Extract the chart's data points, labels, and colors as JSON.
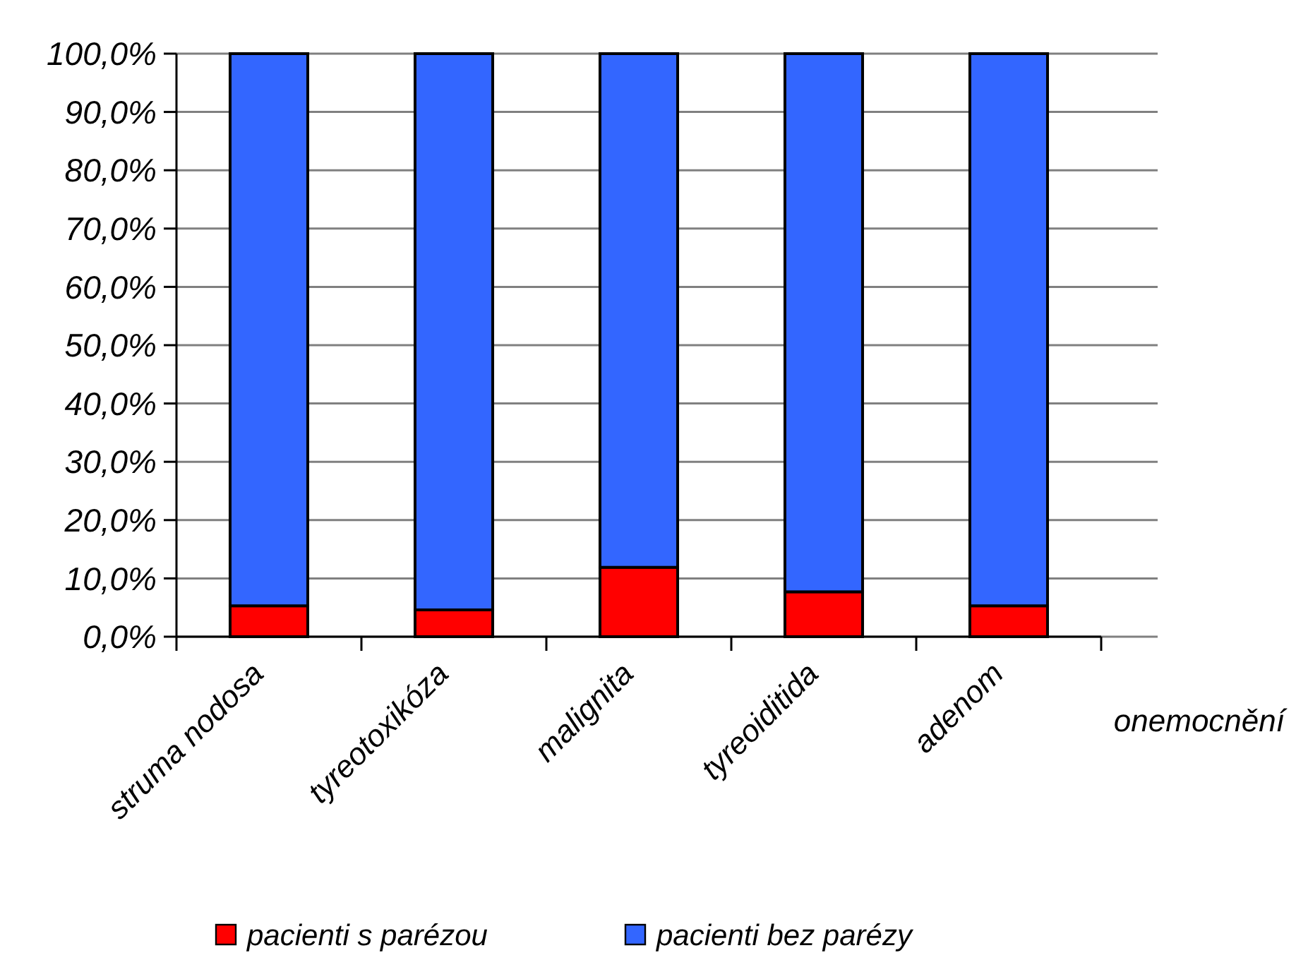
{
  "chart_data": {
    "type": "bar",
    "stacked": true,
    "xlabel": "onemocnění",
    "categories": [
      "struma nodosa",
      "tyreotoxikóza",
      "malignita",
      "tyreoiditida",
      "adenom"
    ],
    "series": [
      {
        "name": "pacienti s parézou",
        "color": "#ff0000",
        "values": [
          5.3,
          4.6,
          11.9,
          7.7,
          5.3
        ]
      },
      {
        "name": "pacienti bez parézy",
        "color": "#3366ff",
        "values": [
          94.7,
          95.4,
          88.1,
          92.3,
          94.7
        ]
      }
    ],
    "ylim": [
      0,
      100
    ],
    "yticks": [
      {
        "value": 0,
        "label": "0,0%"
      },
      {
        "value": 10,
        "label": "10,0%"
      },
      {
        "value": 20,
        "label": "20,0%"
      },
      {
        "value": 30,
        "label": "30,0%"
      },
      {
        "value": 40,
        "label": "40,0%"
      },
      {
        "value": 50,
        "label": "50,0%"
      },
      {
        "value": 60,
        "label": "60,0%"
      },
      {
        "value": 70,
        "label": "70,0%"
      },
      {
        "value": 80,
        "label": "80,0%"
      },
      {
        "value": 90,
        "label": "90,0%"
      },
      {
        "value": 100,
        "label": "100,0%"
      }
    ],
    "grid": "y",
    "legend": "bottom"
  }
}
